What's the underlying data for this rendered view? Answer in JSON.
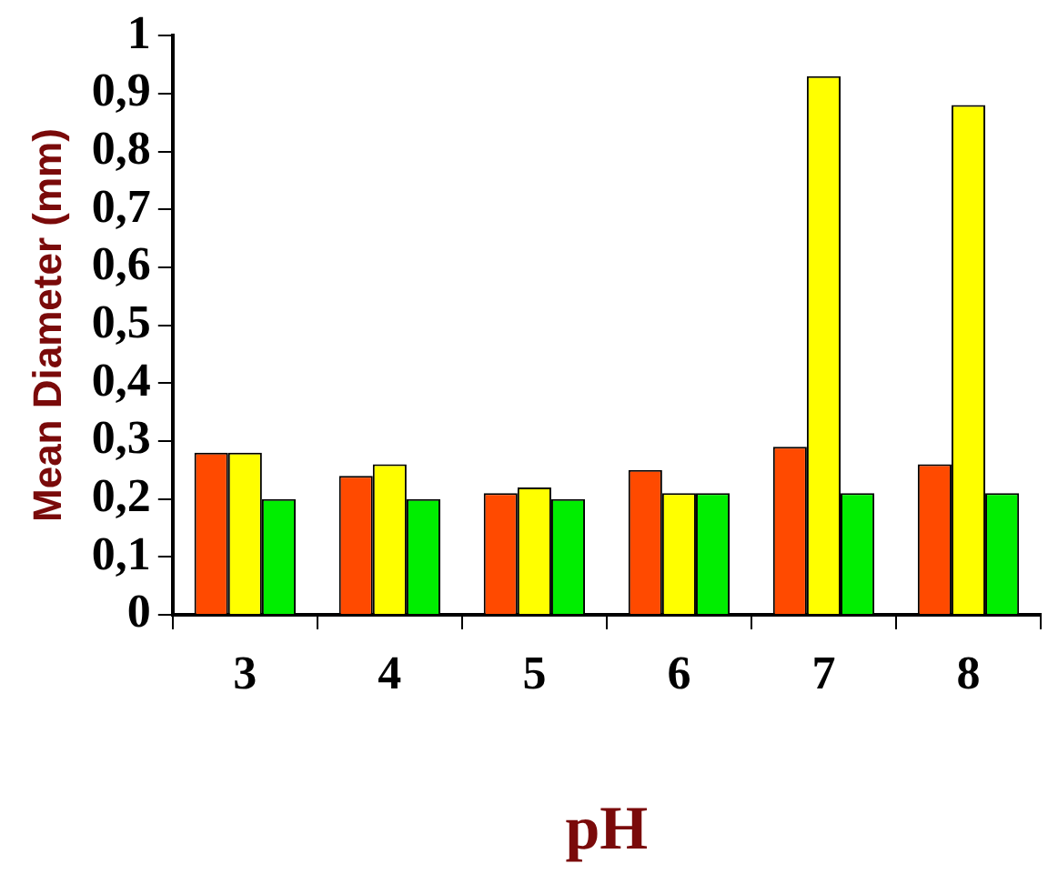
{
  "chart_data": {
    "type": "bar",
    "xlabel": "pH",
    "ylabel": "Mean Diameter (mm)",
    "categories": [
      "3",
      "4",
      "5",
      "6",
      "7",
      "8"
    ],
    "series": [
      {
        "color": "#ff4a00",
        "values": [
          0.28,
          0.24,
          0.21,
          0.25,
          0.29,
          0.26
        ]
      },
      {
        "color": "#ffff00",
        "values": [
          0.28,
          0.26,
          0.22,
          0.21,
          0.93,
          0.88
        ]
      },
      {
        "color": "#00ee00",
        "values": [
          0.2,
          0.2,
          0.2,
          0.21,
          0.21,
          0.21
        ]
      }
    ],
    "ylim": [
      0,
      1
    ],
    "yticks": [
      {
        "value": 0,
        "label": "0"
      },
      {
        "value": 0.1,
        "label": "0,1"
      },
      {
        "value": 0.2,
        "label": "0,2"
      },
      {
        "value": 0.3,
        "label": "0,3"
      },
      {
        "value": 0.4,
        "label": "0,4"
      },
      {
        "value": 0.5,
        "label": "0,5"
      },
      {
        "value": 0.6,
        "label": "0,6"
      },
      {
        "value": 0.7,
        "label": "0,7"
      },
      {
        "value": 0.8,
        "label": "0,8"
      },
      {
        "value": 0.9,
        "label": "0,9"
      },
      {
        "value": 1,
        "label": "1"
      }
    ],
    "grid": false,
    "legend": false
  }
}
